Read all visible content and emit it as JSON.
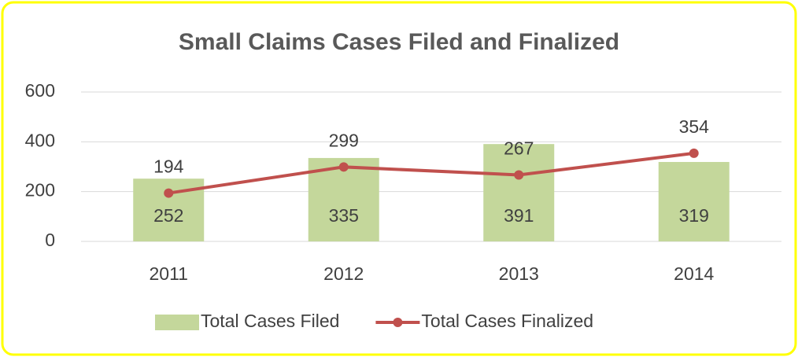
{
  "chart_data": {
    "type": "bar",
    "title": "Small Claims Cases Filed and Finalized",
    "categories": [
      "2011",
      "2012",
      "2013",
      "2014"
    ],
    "series": [
      {
        "name": "Total Cases Filed",
        "type": "bar",
        "color": "#c4d79b",
        "values": [
          252,
          335,
          391,
          319
        ]
      },
      {
        "name": "Total Cases Finalized",
        "type": "line",
        "color": "#c0504d",
        "values": [
          194,
          299,
          267,
          354
        ]
      }
    ],
    "ylim": [
      0,
      600
    ],
    "yticks": [
      0,
      200,
      400,
      600
    ],
    "grid": true,
    "legend": "bottom"
  }
}
